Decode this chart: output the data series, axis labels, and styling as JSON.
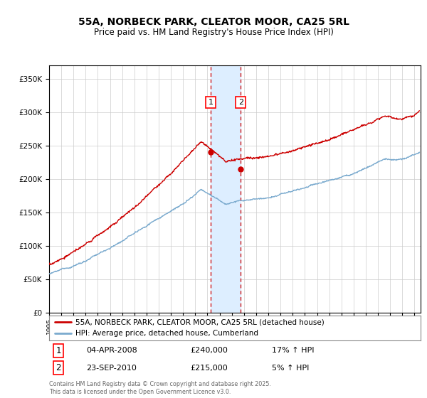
{
  "title": "55A, NORBECK PARK, CLEATOR MOOR, CA25 5RL",
  "subtitle": "Price paid vs. HM Land Registry's House Price Index (HPI)",
  "xlim_start": 1995.0,
  "xlim_end": 2025.5,
  "ylim": [
    0,
    370000
  ],
  "yticks": [
    0,
    50000,
    100000,
    150000,
    200000,
    250000,
    300000,
    350000
  ],
  "ytick_labels": [
    "£0",
    "£50K",
    "£100K",
    "£150K",
    "£200K",
    "£250K",
    "£300K",
    "£350K"
  ],
  "sale1_date": 2008.26,
  "sale1_price": 240000,
  "sale1_label": "1",
  "sale1_text": "04-APR-2008",
  "sale1_hpi_pct": "17% ↑ HPI",
  "sale2_date": 2010.73,
  "sale2_price": 215000,
  "sale2_label": "2",
  "sale2_text": "23-SEP-2010",
  "sale2_hpi_pct": "5% ↑ HPI",
  "line_color_red": "#cc0000",
  "line_color_blue": "#7aaace",
  "shade_color": "#ddeeff",
  "grid_color": "#cccccc",
  "legend_line1": "55A, NORBECK PARK, CLEATOR MOOR, CA25 5RL (detached house)",
  "legend_line2": "HPI: Average price, detached house, Cumberland",
  "footnote": "Contains HM Land Registry data © Crown copyright and database right 2025.\nThis data is licensed under the Open Government Licence v3.0.",
  "background_color": "#ffffff"
}
